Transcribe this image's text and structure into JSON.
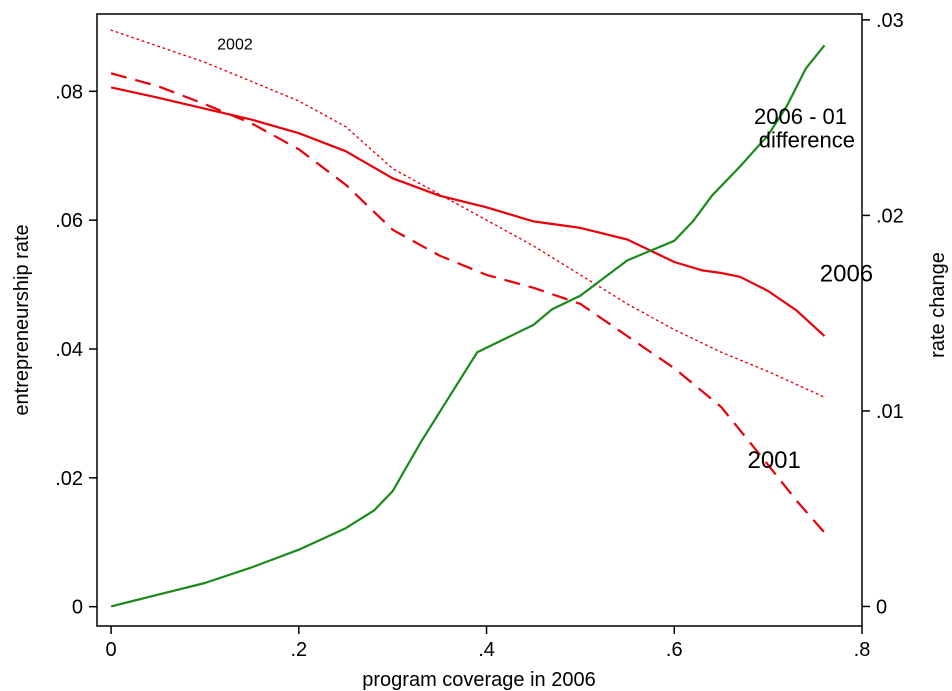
{
  "chart_data": {
    "type": "line",
    "xlabel": "program coverage in 2006",
    "ylabel_left": "entrepreneurship rate",
    "ylabel_right": "rate change",
    "xlim": [
      -0.015,
      0.8
    ],
    "ylim_left": [
      -0.003,
      0.092
    ],
    "ylim_right": [
      -0.001,
      0.0303
    ],
    "x_ticks": [
      {
        "value": 0,
        "label": "0"
      },
      {
        "value": 0.2,
        "label": ".2"
      },
      {
        "value": 0.4,
        "label": ".4"
      },
      {
        "value": 0.6,
        "label": ".6"
      },
      {
        "value": 0.8,
        "label": ".8"
      }
    ],
    "y_ticks_left": [
      {
        "value": 0,
        "label": "0"
      },
      {
        "value": 0.02,
        "label": ".02"
      },
      {
        "value": 0.04,
        "label": ".04"
      },
      {
        "value": 0.06,
        "label": ".06"
      },
      {
        "value": 0.08,
        "label": ".08"
      }
    ],
    "y_ticks_right": [
      {
        "value": 0,
        "label": "0"
      },
      {
        "value": 0.01,
        "label": ".01"
      },
      {
        "value": 0.02,
        "label": ".02"
      },
      {
        "value": 0.03,
        "label": ".03"
      }
    ],
    "grid": false,
    "series": [
      {
        "key": "2006",
        "axis": "left",
        "color": "#e8000b",
        "dash": "solid",
        "x": [
          0,
          0.05,
          0.1,
          0.15,
          0.2,
          0.25,
          0.3,
          0.35,
          0.4,
          0.45,
          0.5,
          0.55,
          0.6,
          0.63,
          0.65,
          0.67,
          0.7,
          0.73,
          0.76
        ],
        "y": [
          0.0806,
          0.079,
          0.0773,
          0.0756,
          0.0735,
          0.0707,
          0.0665,
          0.0638,
          0.062,
          0.0598,
          0.0588,
          0.057,
          0.0535,
          0.0522,
          0.0518,
          0.0512,
          0.049,
          0.046,
          0.042
        ]
      },
      {
        "key": "2001",
        "axis": "left",
        "color": "#e8000b",
        "dash": "dashed",
        "x": [
          0,
          0.05,
          0.1,
          0.15,
          0.2,
          0.25,
          0.3,
          0.35,
          0.4,
          0.45,
          0.5,
          0.55,
          0.6,
          0.65,
          0.7,
          0.73,
          0.76
        ],
        "y": [
          0.0828,
          0.0808,
          0.078,
          0.075,
          0.071,
          0.0655,
          0.0585,
          0.0545,
          0.0515,
          0.0495,
          0.047,
          0.042,
          0.037,
          0.031,
          0.022,
          0.0165,
          0.0115
        ]
      },
      {
        "key": "2002",
        "axis": "left",
        "color": "#e8000b",
        "dash": "dotted",
        "x": [
          0,
          0.05,
          0.1,
          0.15,
          0.2,
          0.25,
          0.3,
          0.35,
          0.4,
          0.45,
          0.5,
          0.55,
          0.6,
          0.65,
          0.7,
          0.76
        ],
        "y": [
          0.0895,
          0.087,
          0.0845,
          0.0815,
          0.0785,
          0.0745,
          0.068,
          0.064,
          0.06,
          0.056,
          0.0515,
          0.047,
          0.043,
          0.0395,
          0.0365,
          0.0325
        ]
      },
      {
        "key": "diff",
        "axis": "right",
        "color": "#1a8a1a",
        "dash": "solid",
        "x": [
          0,
          0.05,
          0.1,
          0.15,
          0.2,
          0.25,
          0.28,
          0.3,
          0.33,
          0.36,
          0.39,
          0.42,
          0.45,
          0.47,
          0.5,
          0.55,
          0.58,
          0.6,
          0.62,
          0.64,
          0.67,
          0.7,
          0.72,
          0.74,
          0.76
        ],
        "y": [
          0,
          0.0006,
          0.0012,
          0.002,
          0.0029,
          0.004,
          0.0049,
          0.0059,
          0.0084,
          0.0107,
          0.013,
          0.0137,
          0.0144,
          0.0152,
          0.0159,
          0.0177,
          0.0183,
          0.0187,
          0.0197,
          0.021,
          0.0225,
          0.0241,
          0.0256,
          0.0275,
          0.0287
        ]
      }
    ],
    "annotations": [
      {
        "key": "label-2002",
        "text": "2002",
        "x": 0.113,
        "y": 0.0865,
        "axis": "left",
        "size": 16
      },
      {
        "key": "label-2006",
        "text": "2006",
        "x": 0.755,
        "y": 0.0505,
        "axis": "left",
        "size": 24
      },
      {
        "key": "label-2001",
        "text": "2001",
        "x": 0.678,
        "y": 0.0215,
        "axis": "left",
        "size": 24
      },
      {
        "key": "label-diff-1",
        "text": "2006 - 01",
        "x": 0.685,
        "y": 0.0749,
        "axis": "left",
        "size": 22
      },
      {
        "key": "label-diff-2",
        "text": "difference",
        "x": 0.69,
        "y": 0.0713,
        "axis": "left",
        "size": 22
      }
    ]
  }
}
